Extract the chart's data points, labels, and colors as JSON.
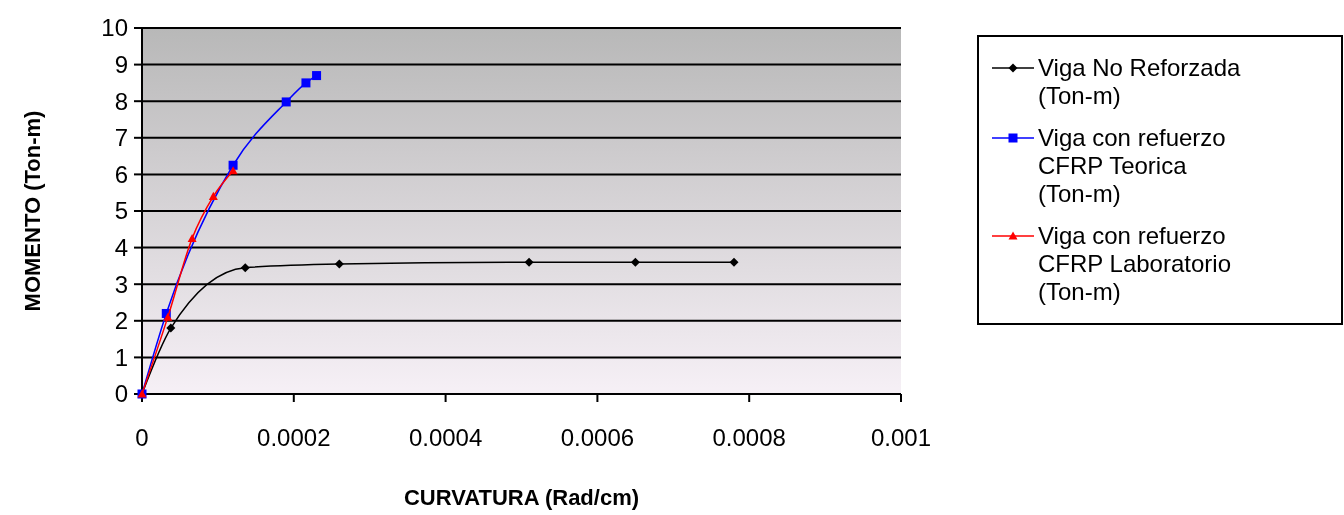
{
  "chart_data": {
    "type": "line",
    "xlabel": "CURVATURA (Rad/cm)",
    "ylabel": "MOMENTO (Ton-m)",
    "xlim": [
      0,
      0.001
    ],
    "xticks": [
      {
        "value": 0,
        "label": "0"
      },
      0.0002,
      0.0004,
      0.0006,
      0.0008,
      0.001
    ],
    "ylim": [
      0,
      10
    ],
    "yticks": [
      0,
      1,
      2,
      3,
      4,
      5,
      6,
      7,
      8,
      9,
      10
    ],
    "grid": "y",
    "legend": "right",
    "series": [
      {
        "name": "Viga No Reforzada (Ton-m)",
        "color": "#000000",
        "marker": "diamond",
        "x": [
          0,
          3.8e-05,
          0.000136,
          0.00026,
          0.00051,
          0.00065,
          0.00078
        ],
        "values": [
          0,
          1.8,
          3.45,
          3.55,
          3.6,
          3.6,
          3.6
        ]
      },
      {
        "name": "Viga con refuerzo CFRP Teorica (Ton-m)",
        "color": "#0000ff",
        "marker": "square",
        "x": [
          0,
          3.2e-05,
          0.00012,
          0.00019,
          0.000216,
          0.00023
        ],
        "values": [
          0,
          2.2,
          6.25,
          7.98,
          8.5,
          8.7
        ]
      },
      {
        "name": "Viga con refuerzo CFRP Laboratorio (Ton-m)",
        "color": "#ff0000",
        "marker": "triangle",
        "x": [
          0,
          3.4e-05,
          6.6e-05,
          9.4e-05,
          0.00012
        ],
        "values": [
          0,
          2.1,
          4.25,
          5.4,
          6.1
        ]
      }
    ]
  }
}
